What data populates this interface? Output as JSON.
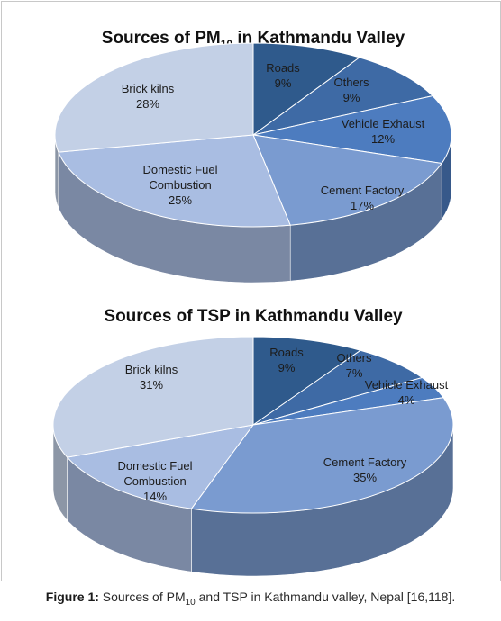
{
  "chart_data": [
    {
      "type": "pie",
      "title": "Sources of PM10 in Kathmandu Valley",
      "title_main": "Sources of PM",
      "title_sub": "10",
      "title_rest": " in Kathmandu Valley",
      "slices": [
        {
          "label": "Roads",
          "value": 9,
          "display": "9%",
          "color": "#2f5a8c"
        },
        {
          "label": "Others",
          "value": 9,
          "display": "9%",
          "color": "#3e6aa5"
        },
        {
          "label": "Vehicle Exhaust",
          "value": 12,
          "display": "12%",
          "color": "#4d7cbf"
        },
        {
          "label": "Cement Factory",
          "value": 17,
          "display": "17%",
          "color": "#7a9bd0"
        },
        {
          "label": "Domestic Fuel Combustion",
          "display_lines": [
            "Domestic Fuel",
            "Combustion"
          ],
          "value": 25,
          "display": "25%",
          "color": "#a9bde2"
        },
        {
          "label": "Brick kilns",
          "value": 28,
          "display": "28%",
          "color": "#c3d0e6"
        }
      ]
    },
    {
      "type": "pie",
      "title": "Sources of TSP in Kathmandu Valley",
      "slices": [
        {
          "label": "Roads",
          "value": 9,
          "display": "9%",
          "color": "#2f5a8c"
        },
        {
          "label": "Others",
          "value": 7,
          "display": "7%",
          "color": "#3e6aa5"
        },
        {
          "label": "Vehicle Exhaust",
          "value": 4,
          "display": "4%",
          "color": "#4d7cbf"
        },
        {
          "label": "Cement Factory",
          "value": 35,
          "display": "35%",
          "color": "#7a9bd0"
        },
        {
          "label": "Domestic Fuel Combustion",
          "display_lines": [
            "Domestic Fuel",
            "Combustion"
          ],
          "value": 14,
          "display": "14%",
          "color": "#a9bde2"
        },
        {
          "label": "Brick kilns",
          "value": 31,
          "display": "31%",
          "color": "#c3d0e6"
        }
      ]
    }
  ],
  "caption": {
    "prefix": "Figure 1:",
    "text_a": " Sources of PM",
    "sub": "10",
    "text_b": " and TSP in Kathmandu valley, Nepal [16,118]."
  }
}
